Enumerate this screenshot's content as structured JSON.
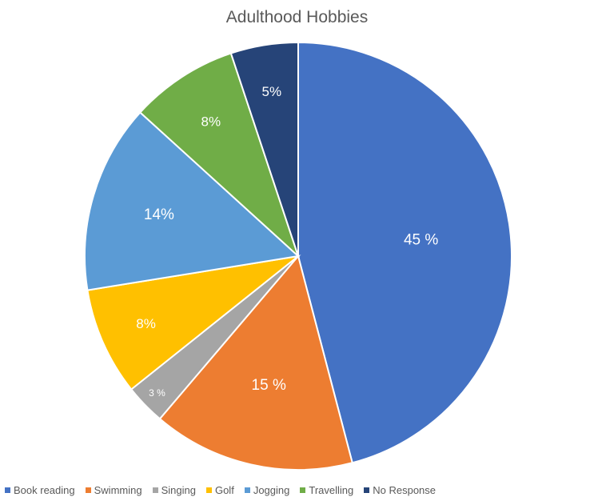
{
  "chart_data": {
    "type": "pie",
    "title": "Adulthood Hobbies",
    "legend_position": "bottom",
    "slices": [
      {
        "name": "Book reading",
        "value": 45,
        "label": "45 %",
        "color": "#4472C4"
      },
      {
        "name": "Swimming",
        "value": 15,
        "label": "15 %",
        "color": "#ED7D31"
      },
      {
        "name": "Singing",
        "value": 3,
        "label": "3 %",
        "color": "#A5A5A5"
      },
      {
        "name": "Golf",
        "value": 8,
        "label": "8%",
        "color": "#FFC000"
      },
      {
        "name": "Jogging",
        "value": 14,
        "label": "14%",
        "color": "#5B9BD5"
      },
      {
        "name": "Travelling",
        "value": 8,
        "label": "8%",
        "color": "#70AD47"
      },
      {
        "name": "No Response",
        "value": 5,
        "label": "5%",
        "color": "#264478"
      }
    ]
  }
}
